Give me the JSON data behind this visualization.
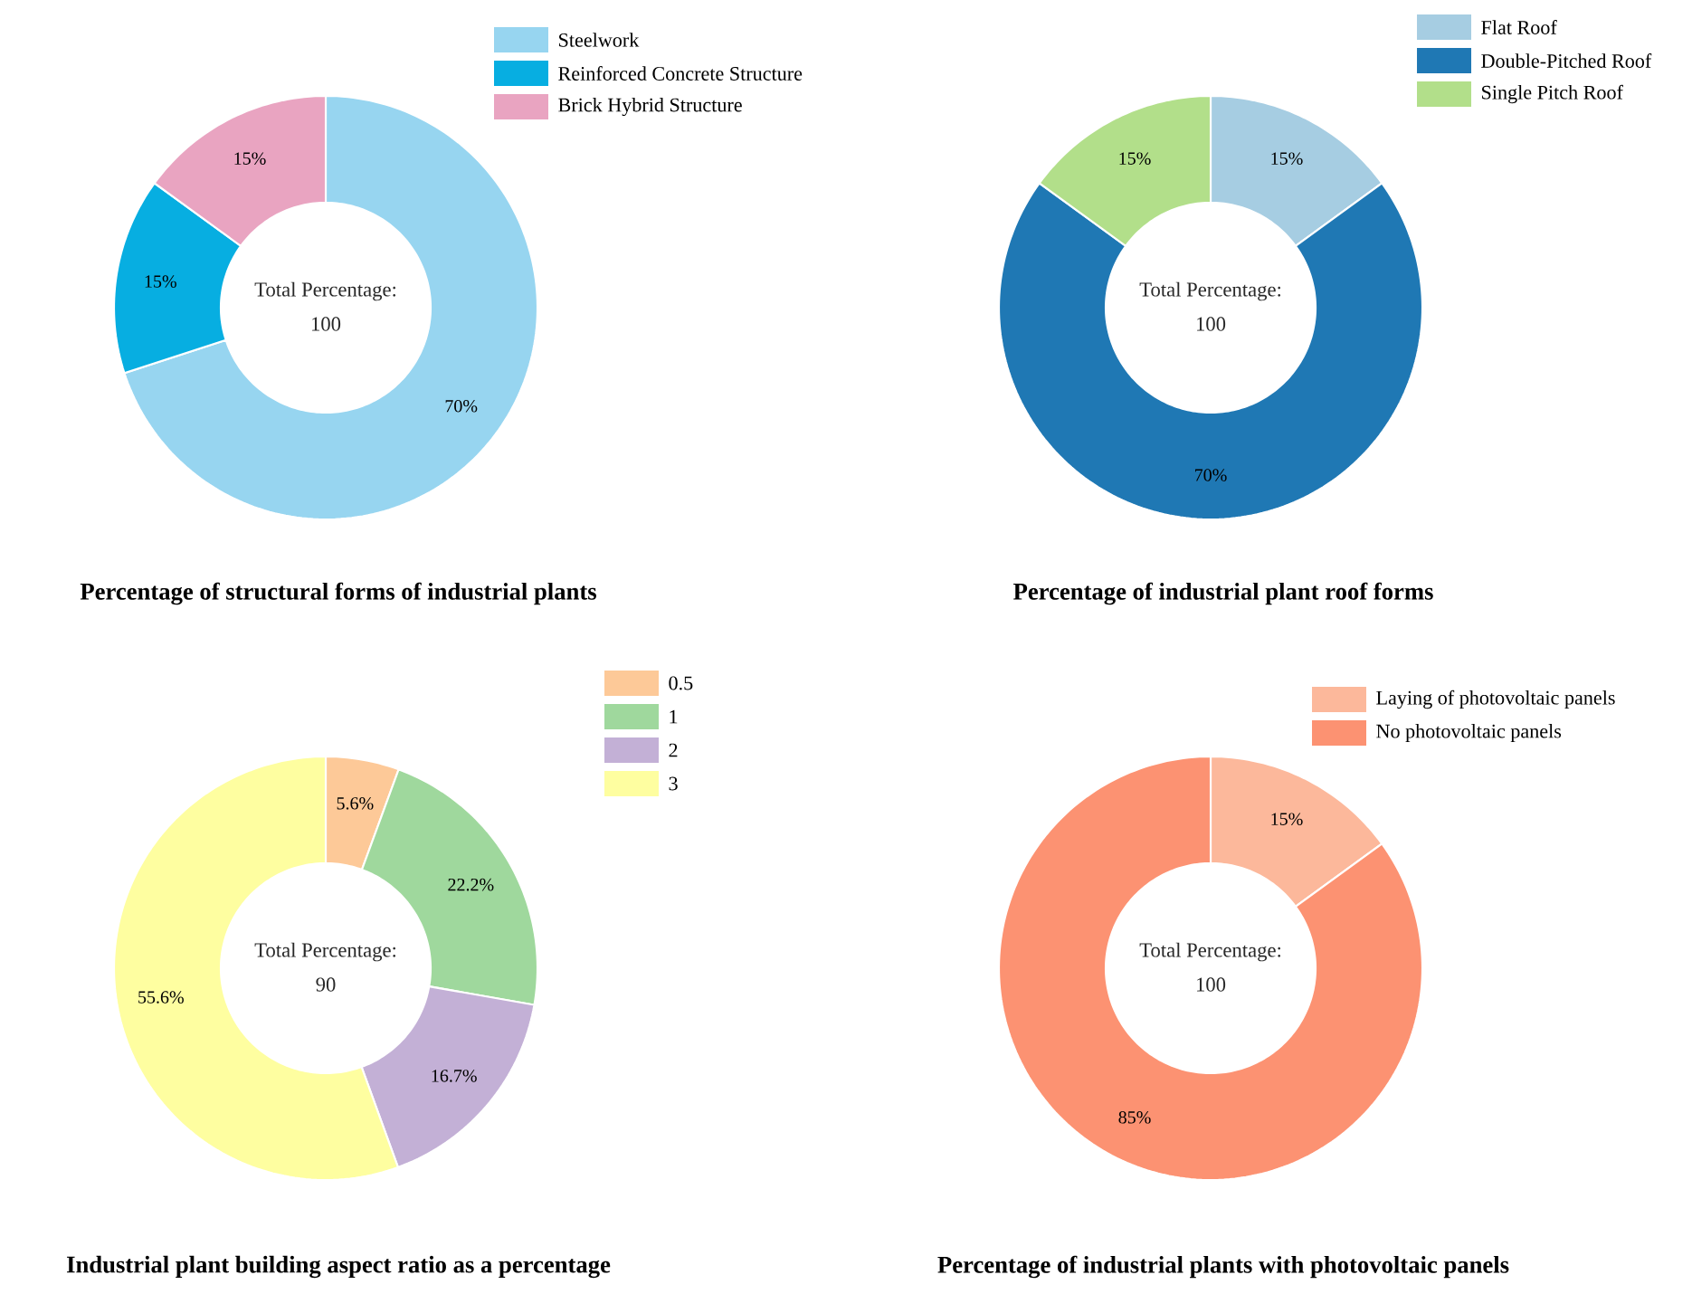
{
  "chart_data": [
    {
      "type": "donut",
      "title": "Percentage of structural forms of industrial plants",
      "categories": [
        "Steelwork",
        "Reinforced Concrete Structure",
        "Brick Hybrid Structure"
      ],
      "values": [
        70,
        15,
        15
      ],
      "colors": [
        "#97d5f0",
        "#07aee1",
        "#e9a4c1"
      ],
      "value_labels": [
        "70%",
        "15%",
        "15%"
      ],
      "annotations": [
        "Total Percentage:",
        "100"
      ],
      "legend": "top right"
    },
    {
      "type": "donut",
      "title": "Percentage of industrial plant roof forms",
      "categories": [
        "Flat Roof",
        "Double-Pitched Roof",
        "Single Pitch Roof"
      ],
      "values": [
        15,
        70,
        15
      ],
      "colors": [
        "#a6cde2",
        "#1f78b4",
        "#b2df8a"
      ],
      "value_labels": [
        "15%",
        "70%",
        "15%"
      ],
      "annotations": [
        "Total Percentage:",
        "100"
      ],
      "legend": "top right"
    },
    {
      "type": "donut",
      "title": "Industrial plant building aspect ratio as a percentage",
      "categories": [
        "0.5",
        "1",
        "2",
        "3"
      ],
      "values": [
        5.6,
        22.2,
        16.7,
        55.6
      ],
      "colors": [
        "#fdc998",
        "#9fd89d",
        "#c3b0d6",
        "#fefea0"
      ],
      "value_labels": [
        "5.6%",
        "22.2%",
        "16.7%",
        "55.6%"
      ],
      "annotations": [
        "Total Percentage:",
        "90"
      ],
      "legend": "top right"
    },
    {
      "type": "donut",
      "title": "Percentage of industrial plants with photovoltaic panels",
      "categories": [
        "Laying of photovoltaic panels",
        "No photovoltaic panels"
      ],
      "values": [
        15,
        85
      ],
      "colors": [
        "#fcb89b",
        "#fc9272"
      ],
      "value_labels": [
        "15%",
        "85%"
      ],
      "annotations": [
        "Total Percentage:",
        "100"
      ],
      "legend": "top right"
    }
  ]
}
